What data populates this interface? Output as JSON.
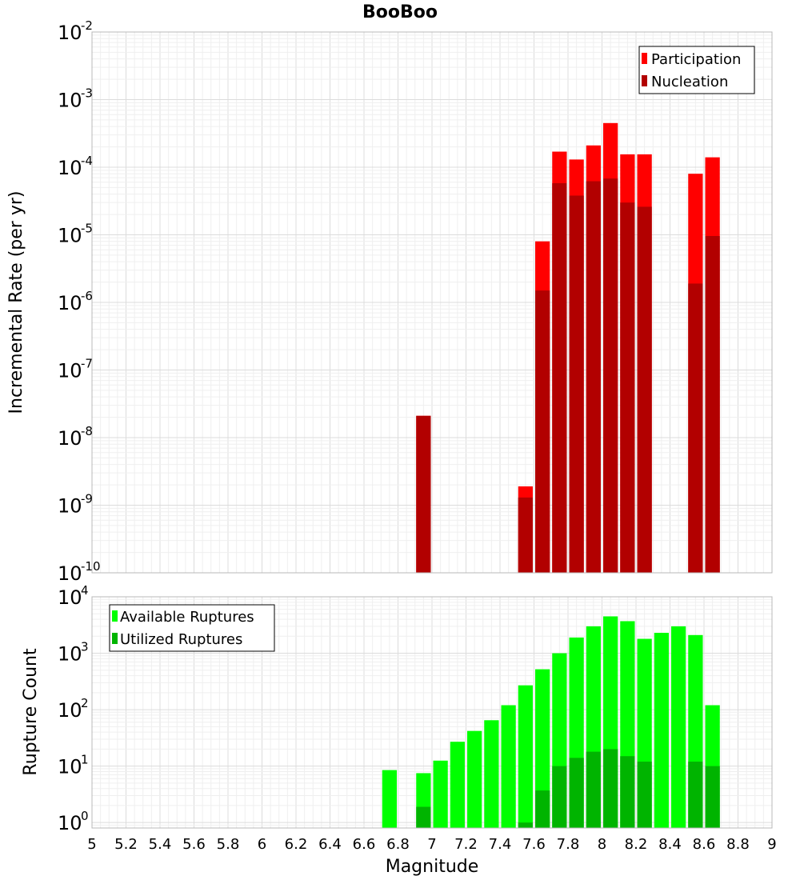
{
  "chart_data": [
    {
      "type": "bar",
      "title": "BooBoo",
      "xlabel": "",
      "ylabel": "Incremental Rate (per yr)",
      "yscale": "log",
      "ylim": [
        1e-10,
        0.01
      ],
      "xlim": [
        5,
        9
      ],
      "bin_width": 0.1,
      "grid": true,
      "legend_position": "top-right",
      "x": [
        6.95,
        7.55,
        7.65,
        7.75,
        7.85,
        7.95,
        8.05,
        8.15,
        8.25,
        8.55,
        8.65
      ],
      "series": [
        {
          "name": "Participation",
          "color": "#ff0000",
          "values": [
            2.1e-08,
            1.9e-09,
            8e-06,
            0.00017,
            0.00013,
            0.00021,
            0.00045,
            0.000155,
            0.000155,
            8e-05,
            0.00014
          ]
        },
        {
          "name": "Nucleation",
          "color": "#b20000",
          "values": [
            2.1e-08,
            1.3e-09,
            1.5e-06,
            5.8e-05,
            3.8e-05,
            6.2e-05,
            6.8e-05,
            3e-05,
            2.6e-05,
            1.9e-06,
            9.6e-06
          ]
        }
      ]
    },
    {
      "type": "bar",
      "title": "",
      "xlabel": "Magnitude",
      "ylabel": "Rupture Count",
      "yscale": "log",
      "ylim": [
        0.8,
        10000
      ],
      "xlim": [
        5,
        9
      ],
      "bin_width": 0.1,
      "grid": true,
      "legend_position": "top-left",
      "xticks": [
        "5",
        "5.2",
        "5.4",
        "5.6",
        "5.8",
        "6",
        "6.2",
        "6.4",
        "6.6",
        "6.8",
        "7",
        "7.2",
        "7.4",
        "7.6",
        "7.8",
        "8",
        "8.2",
        "8.4",
        "8.6",
        "8.8",
        "9"
      ],
      "x": [
        6.75,
        6.95,
        7.05,
        7.15,
        7.25,
        7.35,
        7.45,
        7.55,
        7.65,
        7.75,
        7.85,
        7.95,
        8.05,
        8.15,
        8.25,
        8.35,
        8.45,
        8.55,
        8.65
      ],
      "series": [
        {
          "name": "Available Ruptures",
          "color": "#00ff00",
          "values": [
            8.5,
            7.5,
            12.5,
            27,
            42,
            65,
            120,
            270,
            520,
            1000,
            1900,
            3000,
            4500,
            3700,
            1800,
            2300,
            3000,
            2100,
            120
          ]
        },
        {
          "name": "Utilized Ruptures",
          "color": "#00b400",
          "values": [
            0,
            1.9,
            0,
            0,
            0,
            0,
            0,
            1.0,
            3.7,
            10,
            14,
            18,
            20,
            15,
            12,
            0,
            0,
            12,
            10
          ]
        }
      ]
    }
  ]
}
